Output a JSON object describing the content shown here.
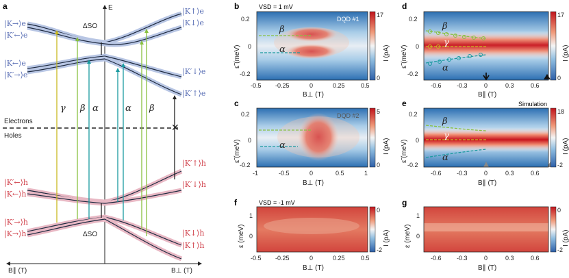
{
  "panel_labels": {
    "a": "a",
    "b": "b",
    "c": "c",
    "d": "d",
    "e": "e",
    "f": "f",
    "g": "g"
  },
  "panel_a": {
    "axis_E": "E",
    "axis_left": "B∥ (T)",
    "axis_right": "B⊥ (T)",
    "electrons": "Electrons",
    "holes": "Holes",
    "delta_so_top": "ΔSO",
    "delta_so_bottom": "ΔSO",
    "greek": {
      "gamma": "γ",
      "beta": "β",
      "alpha": "α"
    },
    "kets_left_e": [
      "|K→⟩e",
      "|K′←⟩e",
      "|K←⟩e",
      "|K′→⟩e"
    ],
    "kets_right_e": [
      "|K↑⟩e",
      "|K↓⟩e",
      "|K′↓⟩e",
      "|K′↑⟩e"
    ],
    "kets_left_h": [
      "|K′←⟩h",
      "|K←⟩h",
      "|K′→⟩h",
      "|K→⟩h"
    ],
    "kets_right_h": [
      "|K′↑⟩h",
      "|K′↓⟩h",
      "|K↓⟩h",
      "|K↑⟩h"
    ],
    "colors": {
      "electron": "#5a6fb5",
      "hole": "#d0404a",
      "gamma": "#c8b820",
      "beta": "#88c040",
      "alpha": "#1a9aa0"
    }
  },
  "panel_b": {
    "label": "VSD = 1 mV",
    "tag": "DQD #1",
    "ylabel": "ε̃ (meV)",
    "xlabel": "B⊥ (T)",
    "cbar_label": "I (pA)",
    "cbar_max": "17",
    "cbar_min": "0",
    "xticks": [
      "-0.5",
      "-0.25",
      "0",
      "0.25",
      "0.5"
    ],
    "yticks": [
      "0.2",
      "0",
      "-0.2"
    ]
  },
  "panel_c": {
    "tag": "DQD #2",
    "ylabel": "ε̃ (meV)",
    "xlabel": "B⊥ (T)",
    "cbar_label": "I (pA)",
    "cbar_max": "5",
    "cbar_min": "0",
    "xticks": [
      "-1",
      "-0.5",
      "0",
      "0.5",
      "1"
    ],
    "yticks": [
      "0.2",
      "0",
      "-0.2"
    ]
  },
  "panel_d": {
    "ylabel": "ε̃ (meV)",
    "xlabel": "B∥ (T)",
    "cbar_label": "I (pA)",
    "cbar_max": "17",
    "cbar_min": "0",
    "xticks": [
      "-0.6",
      "-0.3",
      "0",
      "0.3",
      "0.6"
    ],
    "yticks": [
      "0.2",
      "0",
      "-0.2"
    ]
  },
  "panel_e": {
    "tag": "Simulation",
    "ylabel": "ε̃ (meV)",
    "xlabel": "B∥ (T)",
    "cbar_label": "I (pA)",
    "cbar_max": "18",
    "cbar_min": "-2",
    "xticks": [
      "-0.6",
      "-0.3",
      "0",
      "0.3",
      "0.6"
    ],
    "yticks": [
      "0.2",
      "0",
      "-0.2"
    ]
  },
  "panel_f": {
    "label": "VSD = -1 mV",
    "ylabel": "ε (meV)",
    "xlabel": "B⊥ (T)",
    "cbar_label": "I (pA)",
    "cbar_max": "0",
    "cbar_min": "-2",
    "xticks": [
      "-0.5",
      "-0.25",
      "0",
      "0.25",
      "0.5"
    ],
    "yticks": [
      "1",
      "0"
    ]
  },
  "panel_g": {
    "ylabel": "ε (meV)",
    "xlabel": "B∥ (T)",
    "cbar_label": "I (pA)",
    "cbar_max": "0",
    "cbar_min": "-2",
    "xticks": [
      "-0.6",
      "-0.3",
      "0",
      "0.3",
      "0.6"
    ],
    "yticks": [
      "1",
      "0"
    ]
  }
}
